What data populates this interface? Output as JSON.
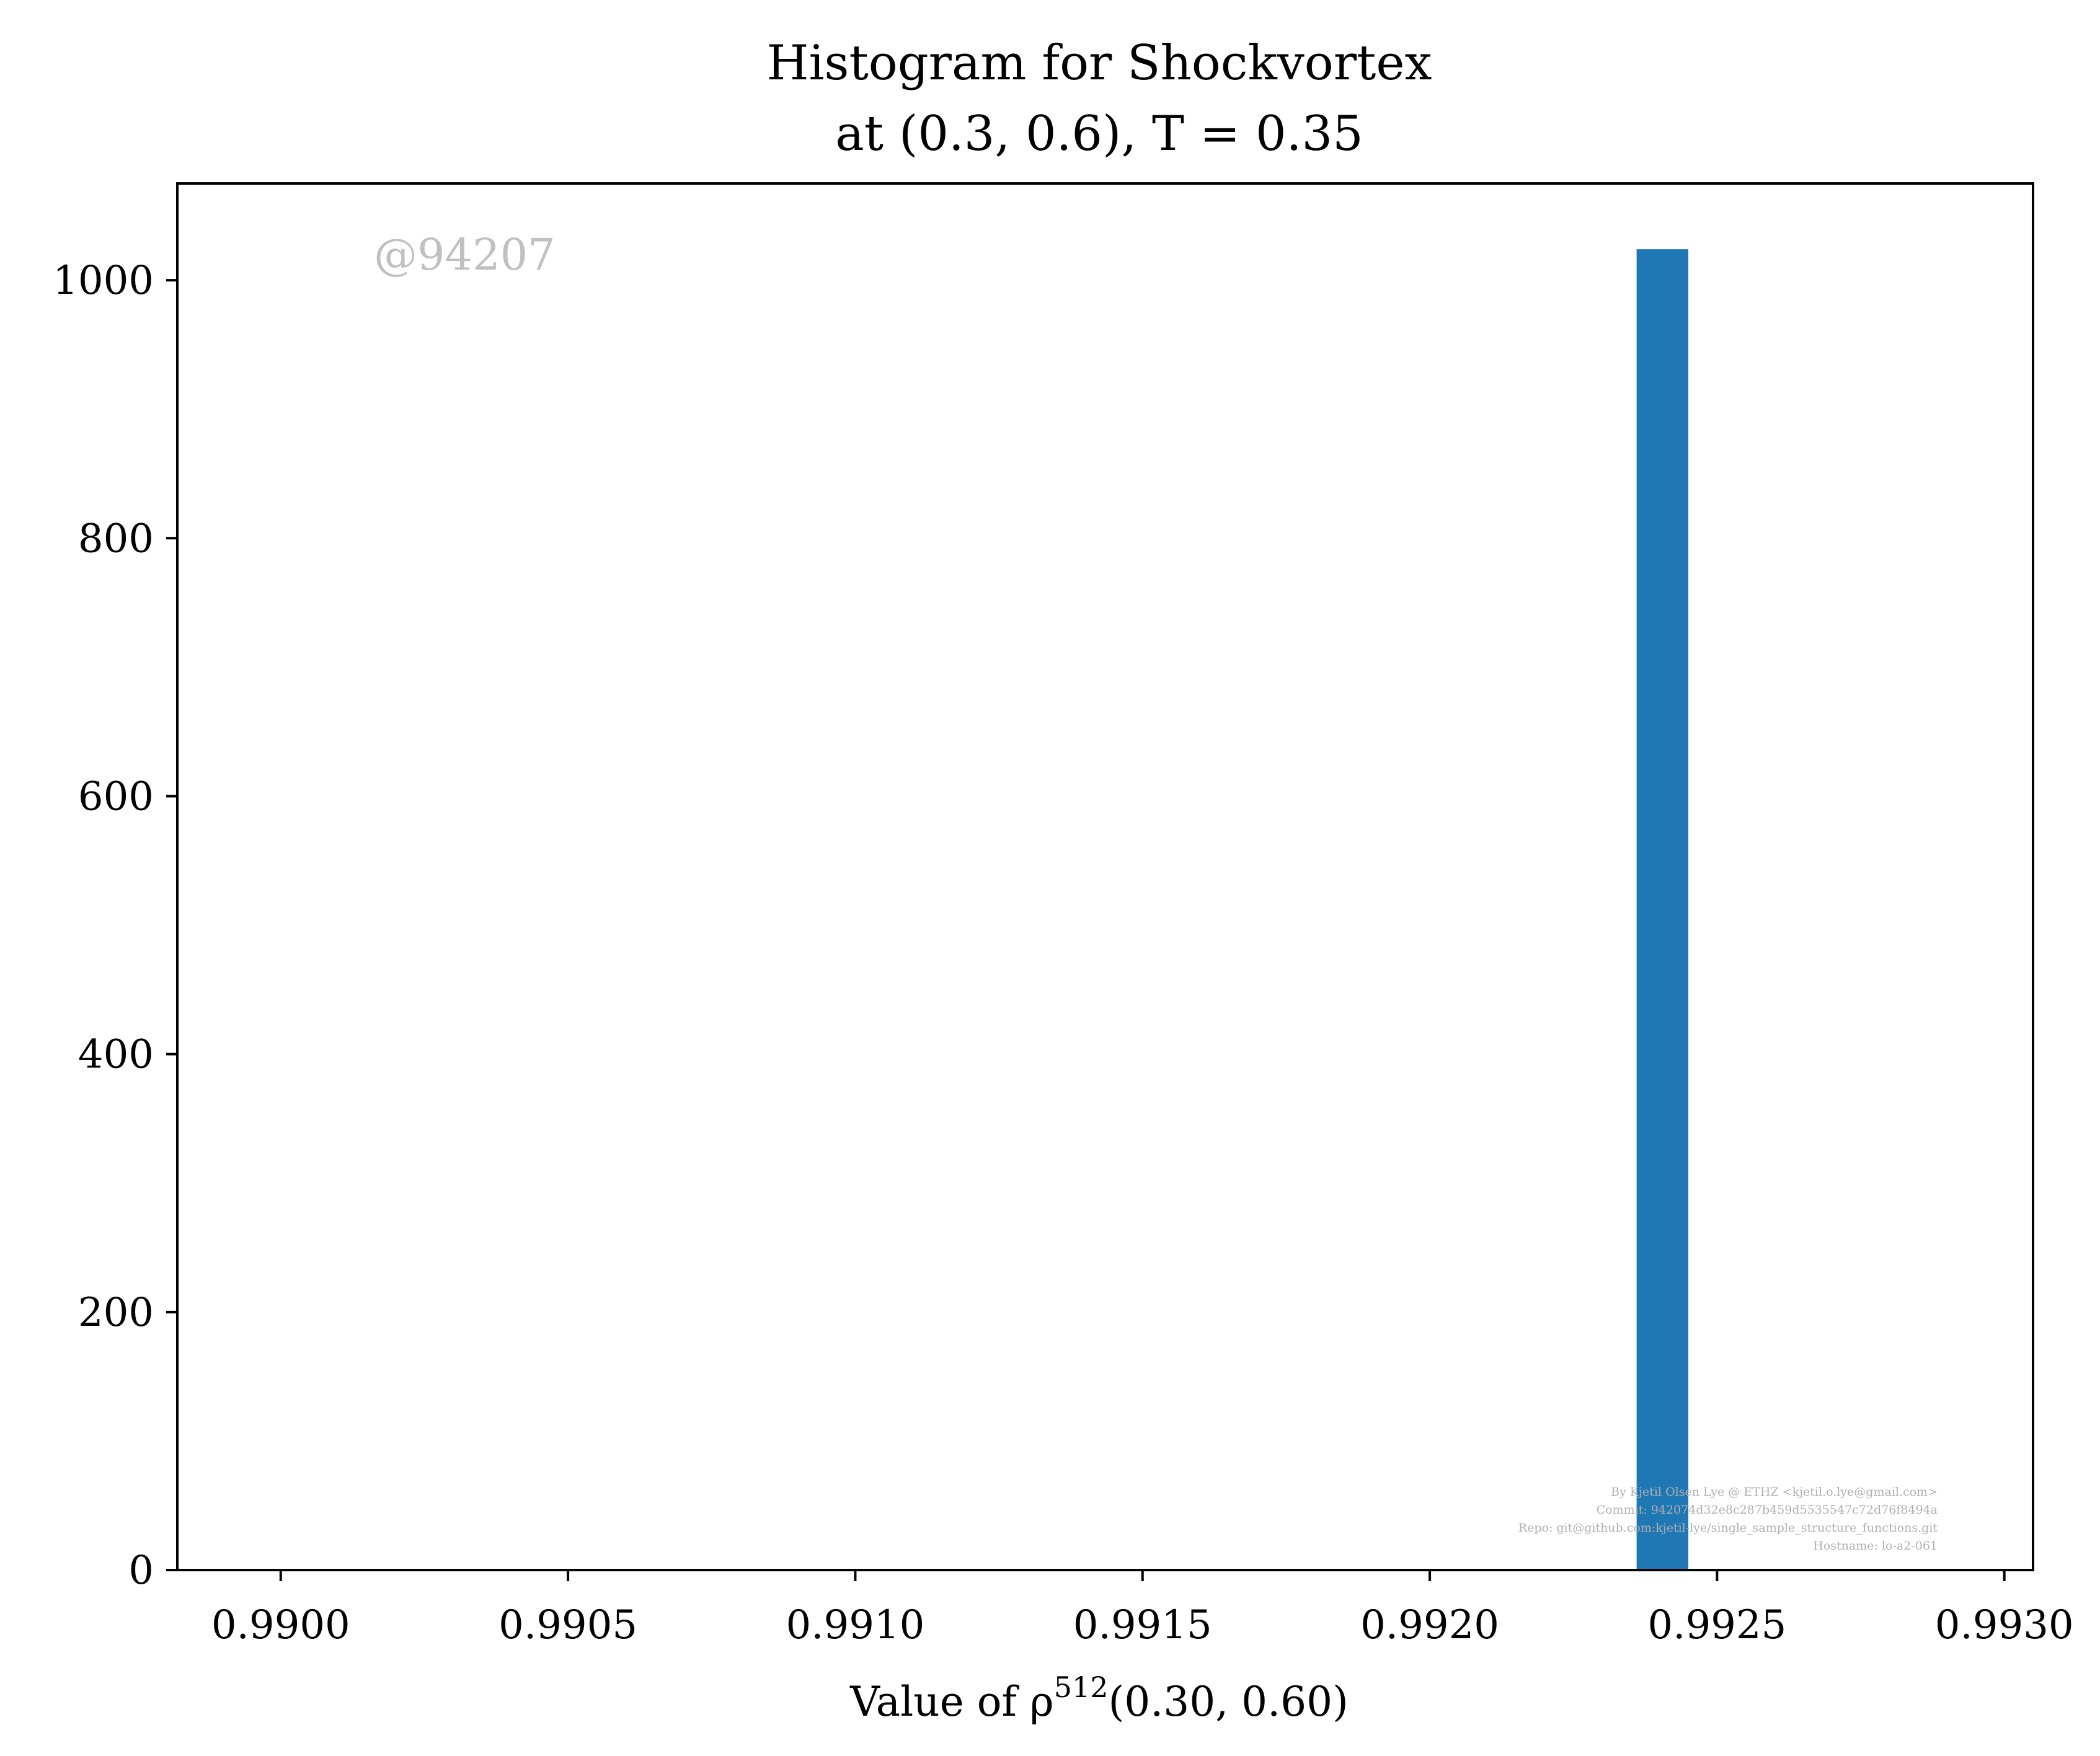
{
  "chart_data": {
    "type": "bar",
    "title_line1": "Histogram for Shockvortex",
    "title_line2": "at (0.3, 0.6), T = 0.35",
    "xlabel": "Value of ρ",
    "xlabel_sup": "512",
    "xlabel_rest": "(0.30, 0.60)",
    "ylabel": "",
    "xlim": [
      0.98982,
      0.99305
    ],
    "ylim": [
      0,
      1075
    ],
    "x_ticks": [
      0.99,
      0.9905,
      0.991,
      0.9915,
      0.992,
      0.9925,
      0.993
    ],
    "x_tick_labels": [
      "0.9900",
      "0.9905",
      "0.9910",
      "0.9915",
      "0.9920",
      "0.9925",
      "0.9930"
    ],
    "y_ticks": [
      0,
      200,
      400,
      600,
      800,
      1000
    ],
    "y_tick_labels": [
      "0",
      "200",
      "400",
      "600",
      "800",
      "1000"
    ],
    "bins": [
      {
        "x0": 0.99236,
        "x1": 0.99245,
        "count": 1024
      }
    ],
    "bar_color": "#1f77b4",
    "grid": false,
    "watermark": "@94207",
    "footer_lines": [
      "By Kjetil Olsen Lye @ ETHZ <kjetil.o.lye@gmail.com>",
      "Commit: 942074d32e8c287b459d5535547c72d76f8494a",
      "Repo: git@github.com:kjetil-lye/single_sample_structure_functions.git",
      "Hostname: lo-a2-061"
    ]
  }
}
